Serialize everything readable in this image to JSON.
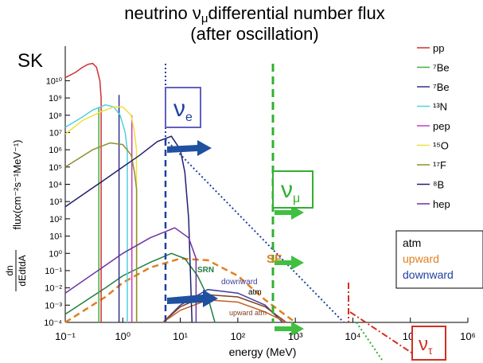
{
  "chart_data": {
    "type": "line",
    "log_x": true,
    "log_y": true,
    "title": [
      "neutrino ν",
      "μ",
      "differential number flux"
    ],
    "subtitle": "(after oscillation)",
    "corner_label": "SK",
    "xlabel": "energy (MeV)",
    "ylabel": {
      "numerator": "dn",
      "denominator": "dEdtdA",
      "text": "flux(cm⁻²s⁻¹MeV⁻¹)"
    },
    "xlim": [
      0.1,
      1000000
    ],
    "ylim": [
      0.0001,
      1000000000000
    ],
    "xticks": [
      {
        "value": 0.1,
        "label": "10⁻¹"
      },
      {
        "value": 1,
        "label": "10⁰"
      },
      {
        "value": 10,
        "label": "10¹"
      },
      {
        "value": 100,
        "label": "10²"
      },
      {
        "value": 1000,
        "label": "10³"
      },
      {
        "value": 10000,
        "label": "10⁴"
      },
      {
        "value": 100000,
        "label": "10⁵"
      },
      {
        "value": 1000000,
        "label": "10⁶"
      }
    ],
    "yticks": [
      {
        "value": 0.0001,
        "label": "10⁻⁴"
      },
      {
        "value": 0.001,
        "label": "10⁻³"
      },
      {
        "value": 0.01,
        "label": "10⁻²"
      },
      {
        "value": 0.1,
        "label": "10⁻¹"
      },
      {
        "value": 1,
        "label": "10⁰"
      },
      {
        "value": 10,
        "label": "10¹"
      },
      {
        "value": 100,
        "label": "10²"
      },
      {
        "value": 1000,
        "label": "10³"
      },
      {
        "value": 10000,
        "label": "10⁴"
      },
      {
        "value": 100000,
        "label": "10⁵"
      },
      {
        "value": 1000000,
        "label": "10⁶"
      },
      {
        "value": 10000000,
        "label": "10⁷"
      },
      {
        "value": 100000000,
        "label": "10⁸"
      },
      {
        "value": 1000000000,
        "label": "10⁹"
      },
      {
        "value": 10000000000,
        "label": "10¹⁰"
      }
    ],
    "series": [
      {
        "name": "pp",
        "color": "#d03030",
        "x": [
          0.1,
          0.15,
          0.2,
          0.25,
          0.3,
          0.35,
          0.4,
          0.42,
          0.42
        ],
        "values": [
          15000000000,
          30000000000,
          60000000000,
          90000000000,
          100000000000,
          60000000000,
          10000000000,
          1000000000,
          0.0001
        ]
      },
      {
        "name": "⁷Be",
        "color": "#40b040",
        "x": [
          0.384,
          0.384
        ],
        "values": [
          0.0001,
          300000000
        ]
      },
      {
        "name": "⁷Be",
        "color": "#303090",
        "x": [
          0.862,
          0.862
        ],
        "values": [
          0.0001,
          1500000000
        ]
      },
      {
        "name": "¹³N",
        "color": "#50d0e0",
        "x": [
          0.1,
          0.2,
          0.3,
          0.5,
          0.7,
          0.9,
          1.1,
          1.2,
          1.2
        ],
        "values": [
          20000000,
          80000000,
          200000000,
          400000000,
          300000000,
          100000000,
          10000000,
          1000000,
          0.0001
        ]
      },
      {
        "name": "pep",
        "color": "#c040c0",
        "x": [
          1.44,
          1.44
        ],
        "values": [
          0.0001,
          100000000
        ]
      },
      {
        "name": "¹⁵O",
        "color": "#f0e040",
        "x": [
          0.1,
          0.2,
          0.4,
          0.7,
          1.0,
          1.4,
          1.6,
          1.73,
          1.73
        ],
        "values": [
          8000000,
          50000000,
          150000000,
          300000000,
          300000000,
          100000000,
          10000000,
          1000000,
          0.0001
        ]
      },
      {
        "name": "¹⁷F",
        "color": "#909030",
        "x": [
          0.1,
          0.3,
          0.6,
          1.0,
          1.4,
          1.6,
          1.74,
          1.74
        ],
        "values": [
          100000,
          1000000,
          2500000,
          2000000,
          500000,
          50000,
          5000,
          0.0001
        ]
      },
      {
        "name": "⁸B",
        "color": "#202070",
        "x": [
          0.1,
          0.5,
          1,
          2,
          4,
          7,
          10,
          12,
          14,
          16
        ],
        "values": [
          500,
          20000,
          100000,
          500000,
          3000000,
          6000000,
          1000000,
          50000,
          100,
          0.0001
        ]
      },
      {
        "name": "hep",
        "color": "#7030a0",
        "x": [
          0.1,
          0.5,
          1,
          3,
          8,
          14,
          18.8,
          18.8
        ],
        "values": [
          0.005,
          0.2,
          1,
          8,
          30,
          8,
          0.5,
          0.0001
        ]
      }
    ],
    "annotated_curves": [
      {
        "name": "SF",
        "color": "#e08020",
        "dash": true,
        "x": [
          0.1,
          0.5,
          1,
          3,
          10,
          30,
          100,
          300,
          1000
        ],
        "values": [
          0.0001,
          0.003,
          0.02,
          0.15,
          0.5,
          0.4,
          0.05,
          0.002,
          0.0001
        ]
      },
      {
        "name": "SRN",
        "color": "#208040",
        "dash": false,
        "x": [
          0.1,
          0.5,
          1,
          3,
          7,
          12,
          20,
          30,
          40
        ],
        "values": [
          0.0003,
          0.01,
          0.05,
          0.3,
          1,
          0.5,
          0.05,
          0.003,
          0.0001
        ]
      },
      {
        "name": "downward",
        "color": "#4040a0",
        "dash": false,
        "x": [
          5,
          10,
          30,
          100,
          300,
          600
        ],
        "values": [
          0.0001,
          0.001,
          0.008,
          0.005,
          0.001,
          0.0001
        ]
      },
      {
        "name": "atm",
        "color": "#804020",
        "dash": false,
        "x": [
          5,
          10,
          30,
          100,
          300,
          700
        ],
        "values": [
          0.0001,
          0.0008,
          0.004,
          0.003,
          0.0008,
          0.0001
        ]
      },
      {
        "name": "upward atm",
        "color": "#c06020",
        "dash": false,
        "x": [
          5,
          10,
          30,
          100,
          300,
          700
        ],
        "values": [
          0.0001,
          0.0005,
          0.002,
          0.0015,
          0.0004,
          0.0001
        ]
      }
    ],
    "legend2": [
      {
        "label": "atm",
        "color": "#000000"
      },
      {
        "label": "upward",
        "color": "#e08020"
      },
      {
        "label": "downward",
        "color": "#2040a0"
      }
    ],
    "flavor_labels": [
      {
        "base": "ν",
        "sub": "e"
      },
      {
        "base": "ν",
        "sub": "μ"
      },
      {
        "base": "ν",
        "sub": "τ"
      }
    ]
  }
}
